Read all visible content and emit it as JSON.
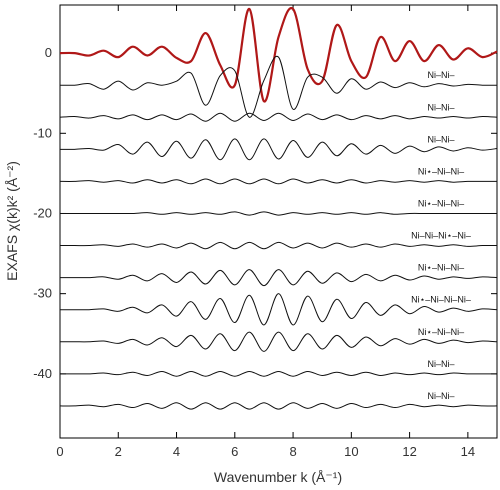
{
  "chart_data": {
    "type": "line",
    "title": "",
    "xlabel": "Wavenumber k (Å⁻¹)",
    "ylabel": "EXAFS χ(k)k² (Å⁻²)",
    "xlim": [
      0,
      15
    ],
    "ylim": [
      -48,
      6
    ],
    "x_ticks": [
      0,
      2,
      4,
      6,
      8,
      10,
      12,
      14
    ],
    "y_ticks": [
      0,
      -10,
      -20,
      -30,
      -40
    ],
    "grid": false,
    "total_color": "#b01818",
    "path_color": "#111111",
    "x": [
      0.0,
      0.5,
      1.0,
      1.5,
      2.0,
      2.5,
      3.0,
      3.5,
      4.0,
      4.5,
      5.0,
      5.5,
      6.0,
      6.5,
      7.0,
      7.5,
      8.0,
      8.5,
      9.0,
      9.5,
      10.0,
      10.5,
      11.0,
      11.5,
      12.0,
      12.5,
      13.0,
      13.5,
      14.0,
      14.5,
      15.0
    ],
    "series": [
      {
        "offset": 0,
        "emphasis": true,
        "values": [
          0,
          0,
          -0.3,
          0.3,
          -0.5,
          0.8,
          -0.3,
          0.8,
          -0.6,
          -1.0,
          2.5,
          -1.5,
          -4.0,
          5.5,
          -6.0,
          2.0,
          5.5,
          -2.0,
          -3.5,
          3.5,
          -1.0,
          -3.0,
          2.0,
          -1.0,
          1.5,
          -1.0,
          1.0,
          -0.8,
          0.6,
          -0.5,
          0.2
        ]
      },
      {
        "offset": -4,
        "label": "Ni–Ni–",
        "values": [
          0,
          0,
          0.2,
          -0.5,
          0.5,
          -0.6,
          0.3,
          0,
          0.5,
          1.5,
          -2.5,
          1.2,
          1.8,
          -4.0,
          0.6,
          3.5,
          -3.0,
          1.0,
          1.0,
          -1.0,
          0.8,
          -0.5,
          0.4,
          -0.3,
          0.3,
          -0.2,
          0.2,
          -0.1,
          0.1,
          0,
          0
        ]
      },
      {
        "offset": -8,
        "label": "Ni–Ni–",
        "values": [
          0,
          0.1,
          -0.1,
          0.2,
          -0.2,
          0.3,
          -0.3,
          0.3,
          -0.3,
          0.4,
          -0.5,
          0.5,
          -0.5,
          0.5,
          -0.4,
          0.5,
          -0.4,
          0.4,
          -0.3,
          0.3,
          -0.3,
          0.2,
          -0.2,
          0.2,
          -0.2,
          0.1,
          -0.1,
          0.1,
          -0.1,
          0.1,
          0
        ]
      },
      {
        "offset": -12,
        "label": "Ni–Ni–",
        "values": [
          0,
          0,
          0.1,
          -0.1,
          0.6,
          -0.6,
          0.9,
          -0.9,
          1.0,
          -1.1,
          1.2,
          -1.3,
          1.3,
          -1.3,
          1.3,
          -1.2,
          1.1,
          -1.0,
          0.9,
          -0.8,
          0.7,
          -0.6,
          0.5,
          -0.5,
          0.4,
          -0.3,
          0.3,
          -0.2,
          0.2,
          -0.1,
          0.1
        ]
      },
      {
        "offset": -16,
        "label": "Ni⋆–Ni–Ni–",
        "values": [
          0,
          0,
          0.1,
          -0.1,
          0.1,
          -0.2,
          0.2,
          -0.2,
          0.2,
          -0.3,
          0.3,
          -0.3,
          0.3,
          -0.3,
          0.3,
          -0.3,
          0.3,
          -0.2,
          0.2,
          -0.2,
          0.2,
          -0.2,
          0.1,
          -0.1,
          0.1,
          -0.1,
          0.1,
          -0.1,
          0,
          0,
          0
        ]
      },
      {
        "offset": -20,
        "label": "Ni⋆–Ni–Ni–",
        "values": [
          0,
          0,
          0,
          0,
          0,
          0,
          0.1,
          -0.1,
          0.1,
          -0.1,
          0.1,
          -0.1,
          0.2,
          -0.2,
          0.2,
          -0.2,
          0.1,
          -0.1,
          0.1,
          -0.1,
          0.1,
          -0.1,
          0.1,
          -0.1,
          0,
          0,
          0,
          0,
          0,
          0,
          0
        ]
      },
      {
        "offset": -24,
        "label": "Ni–Ni–Ni⋆–Ni–",
        "values": [
          0,
          0,
          0,
          0.1,
          -0.1,
          0.2,
          -0.2,
          0.2,
          -0.3,
          0.3,
          -0.4,
          0.4,
          -0.4,
          0.4,
          -0.4,
          0.4,
          -0.3,
          0.3,
          -0.3,
          0.3,
          -0.2,
          0.2,
          -0.2,
          0.2,
          -0.1,
          0.1,
          -0.1,
          0.1,
          -0.1,
          0,
          0
        ]
      },
      {
        "offset": -28,
        "label": "Ni⋆–Ni–Ni–",
        "values": [
          0,
          0,
          0,
          0.1,
          -0.2,
          0.3,
          -0.4,
          0.5,
          -0.6,
          0.7,
          -0.8,
          0.9,
          -0.9,
          1.0,
          -1.0,
          1.0,
          -0.9,
          0.8,
          -0.7,
          0.6,
          -0.5,
          0.4,
          -0.4,
          0.3,
          -0.3,
          0.2,
          -0.2,
          0.1,
          -0.1,
          0.1,
          0
        ]
      },
      {
        "offset": -32,
        "label": "Ni⋆–Ni–Ni–Ni–",
        "values": [
          0,
          0,
          0,
          0.1,
          -0.2,
          0.3,
          -0.4,
          0.6,
          -0.8,
          1.0,
          -1.2,
          1.4,
          -1.6,
          1.8,
          -1.9,
          2.0,
          -1.9,
          1.7,
          -1.5,
          1.3,
          -1.1,
          0.9,
          -0.7,
          0.6,
          -0.5,
          0.4,
          -0.3,
          0.2,
          -0.2,
          0.1,
          0
        ]
      },
      {
        "offset": -36,
        "label": "Ni⋆–Ni–Ni–",
        "values": [
          0,
          0,
          0,
          0.1,
          -0.2,
          0.3,
          -0.4,
          0.5,
          -0.6,
          0.8,
          -0.9,
          1.0,
          -1.1,
          1.2,
          -1.2,
          1.2,
          -1.1,
          1.0,
          -0.9,
          0.8,
          -0.7,
          0.6,
          -0.5,
          0.4,
          -0.3,
          0.3,
          -0.2,
          0.2,
          -0.1,
          0.1,
          0
        ]
      },
      {
        "offset": -40,
        "label": "Ni–Ni–",
        "values": [
          0,
          0,
          0,
          0.1,
          -0.1,
          0.2,
          -0.2,
          0.3,
          -0.3,
          0.3,
          -0.3,
          0.3,
          -0.3,
          0.3,
          -0.3,
          0.3,
          -0.3,
          0.3,
          -0.2,
          0.2,
          -0.2,
          0.2,
          -0.2,
          0.1,
          -0.1,
          0.1,
          -0.1,
          0.1,
          0,
          0,
          0
        ]
      },
      {
        "offset": -44,
        "label": "Ni–Ni–",
        "values": [
          0,
          0,
          0.1,
          -0.1,
          0.2,
          -0.2,
          0.3,
          -0.3,
          0.4,
          -0.4,
          0.4,
          -0.4,
          0.4,
          -0.4,
          0.4,
          -0.4,
          0.4,
          -0.3,
          0.3,
          -0.3,
          0.3,
          -0.2,
          0.2,
          -0.2,
          0.2,
          -0.1,
          0.1,
          -0.1,
          0.1,
          0,
          0
        ]
      }
    ]
  }
}
